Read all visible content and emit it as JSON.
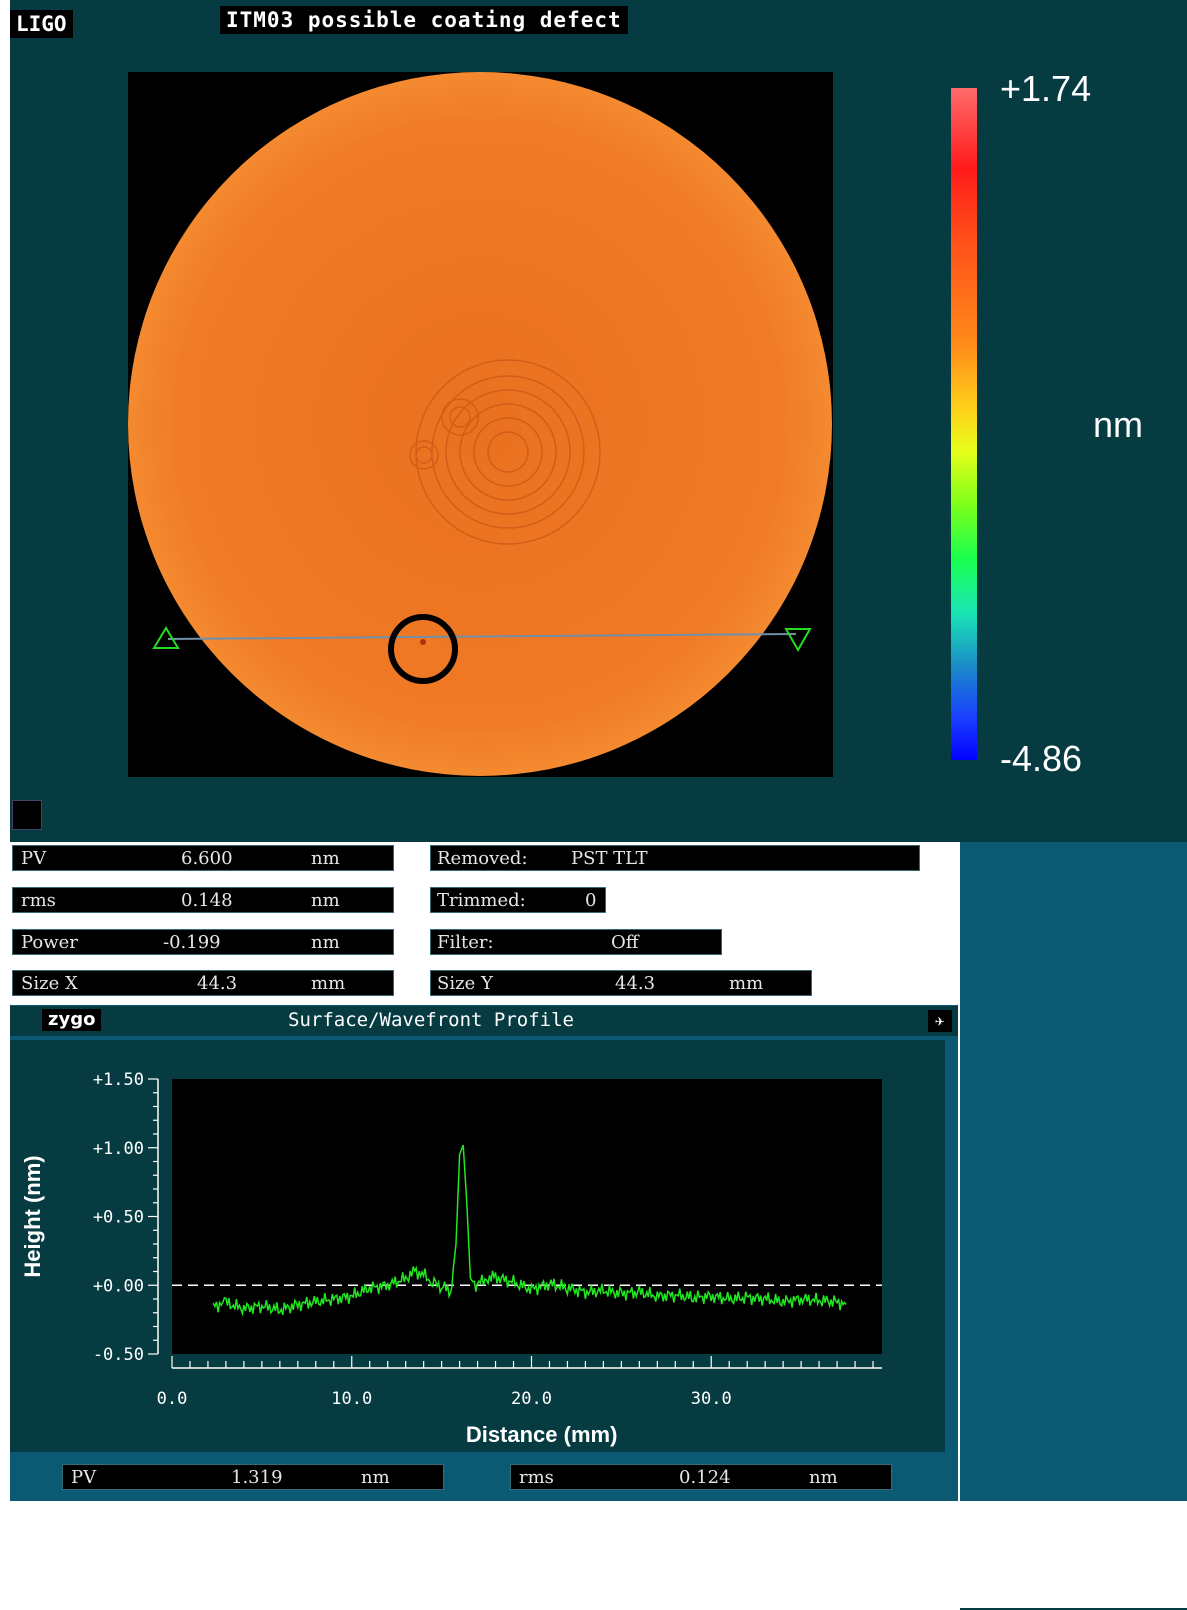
{
  "header": {
    "logo": "LIGO",
    "title": "ITM03 possible coating defect"
  },
  "colorbar": {
    "max_label": "+1.74",
    "min_label": "-4.86",
    "unit_label": "nm",
    "colors": [
      "#ff6b6b",
      "#ff1a1a",
      "#ff8a1a",
      "#ffd21a",
      "#7dff1a",
      "#1aff4d",
      "#1a8cc8",
      "#0000ff"
    ]
  },
  "map": {
    "surface_color": "#f07a25",
    "background_color": "#000000"
  },
  "stats_left": [
    {
      "label": "PV",
      "value": "6.600",
      "unit": "nm"
    },
    {
      "label": "rms",
      "value": "0.148",
      "unit": "nm"
    },
    {
      "label": "Power",
      "value": "-0.199",
      "unit": "nm"
    },
    {
      "label": "Size X",
      "value": "44.3",
      "unit": "mm"
    }
  ],
  "stats_right": {
    "removed": {
      "label": "Removed:",
      "value": "PST TLT"
    },
    "trimmed": {
      "label": "Trimmed:",
      "value": "0"
    },
    "filter": {
      "label": "Filter:",
      "value": "Off"
    },
    "size_y": {
      "label": "Size Y",
      "value": "44.3",
      "unit": "mm"
    }
  },
  "profile_window": {
    "brand": "zygo",
    "title": "Surface/Wavefront Profile",
    "close_icon": "close-icon",
    "menu_icon": "pin-icon"
  },
  "chart_data": {
    "type": "line",
    "title": "",
    "xlabel": "Distance (mm)",
    "ylabel": "Height (nm)",
    "xlim": [
      0,
      39.5
    ],
    "ylim": [
      -0.5,
      1.5
    ],
    "x_ticks": [
      "0.0",
      "10.0",
      "20.0",
      "30.0"
    ],
    "x_tick_values": [
      0,
      10,
      20,
      30
    ],
    "y_ticks": [
      "+1.50",
      "+1.00",
      "+0.50",
      "+0.00",
      "-0.50"
    ],
    "y_tick_values": [
      1.5,
      1.0,
      0.5,
      0.0,
      -0.5
    ],
    "reference_line": 0.0,
    "line_color": "#22e622",
    "series": [
      {
        "x": [
          2.3,
          3.0,
          4.0,
          5.0,
          6.0,
          7.0,
          8.0,
          9.0,
          10.0,
          11.0,
          12.0,
          13.0,
          13.5,
          14.0,
          14.5,
          15.0,
          15.5,
          15.8,
          16.0,
          16.2,
          16.4,
          16.6,
          16.9,
          17.5,
          18.0,
          19.0,
          20.0,
          21.0,
          22.0,
          23.0,
          24.0,
          25.0,
          26.0,
          27.0,
          28.0,
          29.0,
          30.0,
          31.0,
          32.0,
          33.0,
          34.0,
          35.0,
          36.0,
          37.0,
          37.5
        ],
        "y": [
          -0.15,
          -0.13,
          -0.17,
          -0.15,
          -0.18,
          -0.14,
          -0.12,
          -0.1,
          -0.08,
          -0.02,
          0.0,
          0.05,
          0.1,
          0.08,
          0.02,
          0.0,
          -0.05,
          0.3,
          0.95,
          1.02,
          0.6,
          0.05,
          0.0,
          0.05,
          0.06,
          0.02,
          -0.03,
          0.01,
          -0.02,
          -0.05,
          -0.04,
          -0.06,
          -0.05,
          -0.08,
          -0.07,
          -0.09,
          -0.08,
          -0.1,
          -0.09,
          -0.1,
          -0.12,
          -0.1,
          -0.11,
          -0.12,
          -0.14
        ]
      }
    ]
  },
  "stats_bottom": [
    {
      "label": "PV",
      "value": "1.319",
      "unit": "nm"
    },
    {
      "label": "rms",
      "value": "0.124",
      "unit": "nm"
    }
  ]
}
